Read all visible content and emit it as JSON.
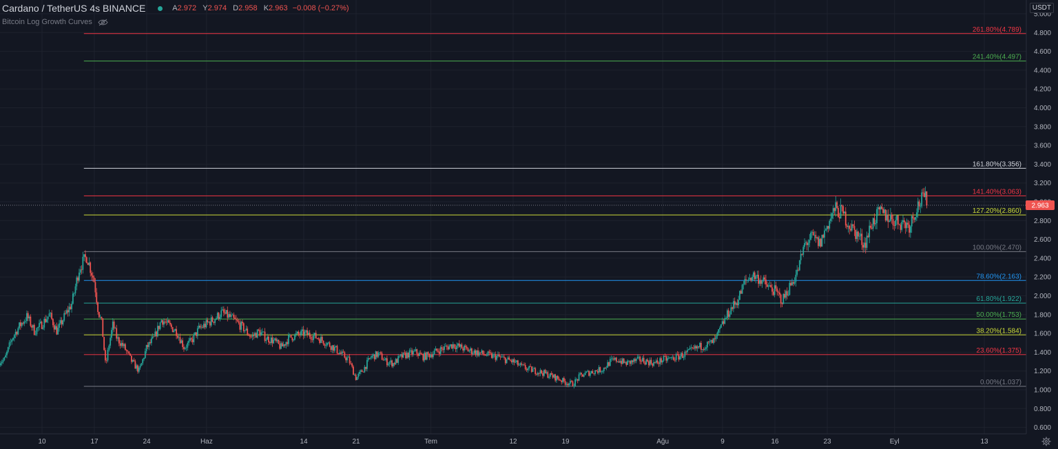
{
  "header": {
    "symbol": "Cardano / TetherUS  4s  BINANCE",
    "ohlc": {
      "open_label": "A",
      "open": "2.972",
      "high_label": "Y",
      "high": "2.974",
      "low_label": "D",
      "low": "2.958",
      "close_label": "K",
      "close": "2.963",
      "change": "−0.008 (−0.27%)"
    },
    "indicator": "Bitcoin Log Growth Curves"
  },
  "axis_unit": "USDT",
  "colors": {
    "background": "#131722",
    "up": "#26a69a",
    "down": "#ef5350",
    "text": "#b2b5be"
  },
  "icons": [
    "eye-hidden-icon",
    "gear-icon"
  ],
  "chart_data": {
    "type": "candlestick",
    "ylim": [
      0.6,
      5.0
    ],
    "yticks": [
      "0.600",
      "0.800",
      "1.000",
      "1.200",
      "1.400",
      "1.600",
      "1.800",
      "2.000",
      "2.200",
      "2.400",
      "2.600",
      "2.800",
      "3.000",
      "3.200",
      "3.400",
      "3.600",
      "3.800",
      "4.000",
      "4.200",
      "4.400",
      "4.600",
      "4.800",
      "5.000"
    ],
    "xticks": [
      {
        "label": "10",
        "day": 10
      },
      {
        "label": "17",
        "day": 17
      },
      {
        "label": "24",
        "day": 24
      },
      {
        "label": "Haz",
        "day": 32
      },
      {
        "label": "14",
        "day": 45
      },
      {
        "label": "21",
        "day": 52
      },
      {
        "label": "Tem",
        "day": 62
      },
      {
        "label": "12",
        "day": 73
      },
      {
        "label": "19",
        "day": 80
      },
      {
        "label": "Ağu",
        "day": 93
      },
      {
        "label": "9",
        "day": 101
      },
      {
        "label": "16",
        "day": 108
      },
      {
        "label": "23",
        "day": 115
      },
      {
        "label": "Eyl",
        "day": 124
      },
      {
        "label": "13",
        "day": 136
      }
    ],
    "xlim_days": [
      4.3,
      148
    ],
    "price_path": [
      [
        4.3,
        1.3
      ],
      [
        5,
        1.32
      ],
      [
        6,
        1.55
      ],
      [
        7,
        1.68
      ],
      [
        8,
        1.78
      ],
      [
        9,
        1.62
      ],
      [
        10,
        1.7
      ],
      [
        11,
        1.8
      ],
      [
        12,
        1.62
      ],
      [
        13,
        1.78
      ],
      [
        14,
        1.92
      ],
      [
        15,
        2.3
      ],
      [
        16,
        2.42
      ],
      [
        17,
        2.15
      ],
      [
        17.5,
        1.85
      ],
      [
        18,
        1.7
      ],
      [
        18.5,
        1.25
      ],
      [
        19,
        1.5
      ],
      [
        19.5,
        1.7
      ],
      [
        20,
        1.55
      ],
      [
        21,
        1.45
      ],
      [
        22,
        1.3
      ],
      [
        23,
        1.2
      ],
      [
        24,
        1.45
      ],
      [
        25,
        1.55
      ],
      [
        26,
        1.75
      ],
      [
        27,
        1.68
      ],
      [
        28,
        1.62
      ],
      [
        29,
        1.45
      ],
      [
        30,
        1.52
      ],
      [
        31,
        1.65
      ],
      [
        32,
        1.7
      ],
      [
        33,
        1.75
      ],
      [
        34,
        1.82
      ],
      [
        35,
        1.78
      ],
      [
        36,
        1.72
      ],
      [
        37,
        1.65
      ],
      [
        38,
        1.56
      ],
      [
        39,
        1.62
      ],
      [
        40,
        1.55
      ],
      [
        41,
        1.52
      ],
      [
        42,
        1.45
      ],
      [
        43,
        1.55
      ],
      [
        44,
        1.58
      ],
      [
        45,
        1.6
      ],
      [
        46,
        1.58
      ],
      [
        47,
        1.55
      ],
      [
        48,
        1.5
      ],
      [
        49,
        1.45
      ],
      [
        50,
        1.38
      ],
      [
        51,
        1.32
      ],
      [
        52,
        1.12
      ],
      [
        53,
        1.22
      ],
      [
        54,
        1.35
      ],
      [
        55,
        1.38
      ],
      [
        56,
        1.3
      ],
      [
        57,
        1.28
      ],
      [
        58,
        1.35
      ],
      [
        59,
        1.38
      ],
      [
        60,
        1.4
      ],
      [
        61,
        1.35
      ],
      [
        62,
        1.38
      ],
      [
        63,
        1.42
      ],
      [
        64,
        1.45
      ],
      [
        65,
        1.48
      ],
      [
        66,
        1.45
      ],
      [
        67,
        1.42
      ],
      [
        68,
        1.4
      ],
      [
        69,
        1.38
      ],
      [
        70,
        1.36
      ],
      [
        71,
        1.35
      ],
      [
        72,
        1.32
      ],
      [
        73,
        1.3
      ],
      [
        74,
        1.25
      ],
      [
        75,
        1.22
      ],
      [
        76,
        1.2
      ],
      [
        77,
        1.18
      ],
      [
        78,
        1.15
      ],
      [
        79,
        1.12
      ],
      [
        80,
        1.08
      ],
      [
        81,
        1.06
      ],
      [
        82,
        1.15
      ],
      [
        83,
        1.18
      ],
      [
        84,
        1.2
      ],
      [
        85,
        1.22
      ],
      [
        86,
        1.3
      ],
      [
        87,
        1.32
      ],
      [
        88,
        1.28
      ],
      [
        89,
        1.3
      ],
      [
        90,
        1.32
      ],
      [
        91,
        1.3
      ],
      [
        92,
        1.28
      ],
      [
        93,
        1.32
      ],
      [
        94,
        1.33
      ],
      [
        95,
        1.35
      ],
      [
        96,
        1.38
      ],
      [
        97,
        1.42
      ],
      [
        98,
        1.46
      ],
      [
        99,
        1.48
      ],
      [
        100,
        1.52
      ],
      [
        101,
        1.7
      ],
      [
        102,
        1.85
      ],
      [
        103,
        1.95
      ],
      [
        104,
        2.15
      ],
      [
        105,
        2.22
      ],
      [
        106,
        2.18
      ],
      [
        107,
        2.1
      ],
      [
        108,
        2.05
      ],
      [
        109,
        1.95
      ],
      [
        110,
        2.1
      ],
      [
        111,
        2.25
      ],
      [
        112,
        2.55
      ],
      [
        113,
        2.62
      ],
      [
        114,
        2.55
      ],
      [
        115,
        2.75
      ],
      [
        116,
        2.92
      ],
      [
        117,
        2.88
      ],
      [
        118,
        2.75
      ],
      [
        119,
        2.65
      ],
      [
        120,
        2.55
      ],
      [
        121,
        2.78
      ],
      [
        122,
        2.88
      ],
      [
        123,
        2.85
      ],
      [
        124,
        2.8
      ],
      [
        125,
        2.78
      ],
      [
        126,
        2.75
      ],
      [
        127,
        2.95
      ],
      [
        128,
        3.05
      ],
      [
        128.4,
        2.963
      ]
    ],
    "fib_levels": [
      {
        "label": "0.00%(1.037)",
        "value": 1.037,
        "color": "#787b86"
      },
      {
        "label": "23.60%(1.375)",
        "value": 1.375,
        "color": "#f23645"
      },
      {
        "label": "38.20%(1.584)",
        "value": 1.584,
        "color": "#cddc39"
      },
      {
        "label": "50.00%(1.753)",
        "value": 1.753,
        "color": "#4caf50"
      },
      {
        "label": "61.80%(1.922)",
        "value": 1.922,
        "color": "#26a69a"
      },
      {
        "label": "78.60%(2.163)",
        "value": 2.163,
        "color": "#2196f3"
      },
      {
        "label": "100.00%(2.470)",
        "value": 2.47,
        "color": "#787b86"
      },
      {
        "label": "127.20%(2.860)",
        "value": 2.86,
        "color": "#cddc39"
      },
      {
        "label": "141.40%(3.063)",
        "value": 3.063,
        "color": "#f23645"
      },
      {
        "label": "161.80%(3.356)",
        "value": 3.356,
        "color": "#d1d4dc"
      },
      {
        "label": "241.40%(4.497)",
        "value": 4.497,
        "color": "#4caf50"
      },
      {
        "label": "261.80%(4.789)",
        "value": 4.789,
        "color": "#f23645"
      }
    ],
    "fib_start_day": 15.6,
    "last_price": "2.963",
    "last_price_value": 2.963
  }
}
